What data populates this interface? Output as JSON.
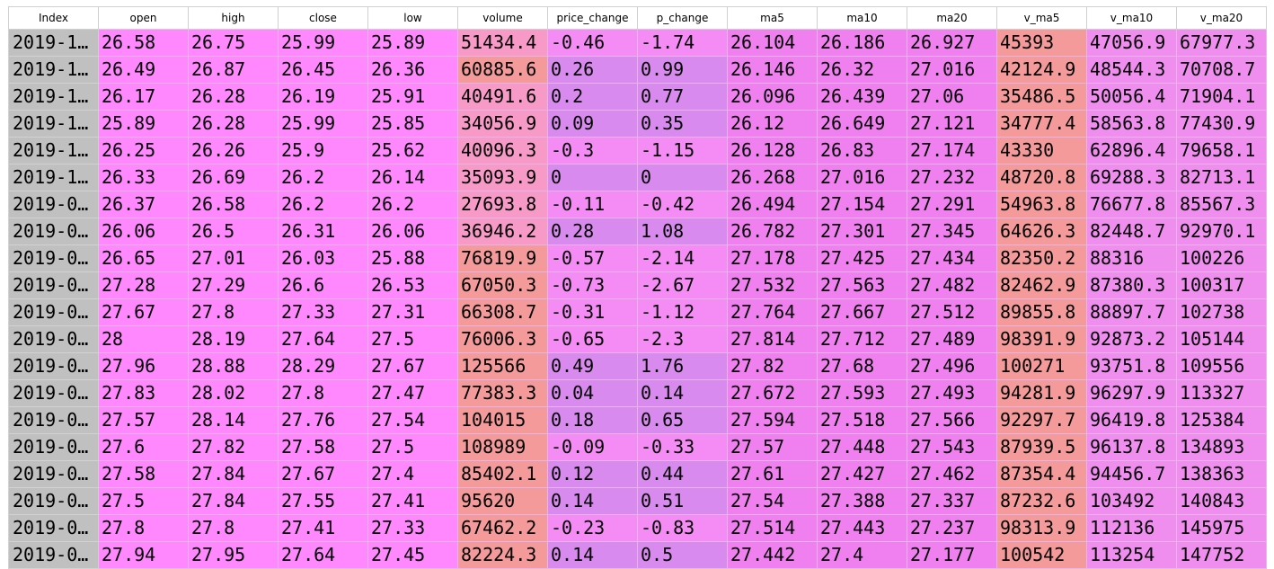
{
  "table": {
    "columns": [
      "Index",
      "open",
      "high",
      "close",
      "low",
      "volume",
      "price_change",
      "p_change",
      "ma5",
      "ma10",
      "ma20",
      "v_ma5",
      "v_ma10",
      "v_ma20"
    ],
    "rows": [
      [
        "2019-1…",
        "26.58",
        "26.75",
        "25.99",
        "25.89",
        "51434.4",
        "-0.46",
        "-1.74",
        "26.104",
        "26.186",
        "26.927",
        "45393",
        "47056.9",
        "67977.3"
      ],
      [
        "2019-1…",
        "26.49",
        "26.87",
        "26.45",
        "26.36",
        "60885.6",
        "0.26",
        "0.99",
        "26.146",
        "26.32",
        "27.016",
        "42124.9",
        "48544.3",
        "70708.7"
      ],
      [
        "2019-1…",
        "26.17",
        "26.28",
        "26.19",
        "25.91",
        "40491.6",
        "0.2",
        "0.77",
        "26.096",
        "26.439",
        "27.06",
        "35486.5",
        "50056.4",
        "71904.1"
      ],
      [
        "2019-1…",
        "25.89",
        "26.28",
        "25.99",
        "25.85",
        "34056.9",
        "0.09",
        "0.35",
        "26.12",
        "26.649",
        "27.121",
        "34777.4",
        "58563.8",
        "77430.9"
      ],
      [
        "2019-1…",
        "26.25",
        "26.26",
        "25.9",
        "25.62",
        "40096.3",
        "-0.3",
        "-1.15",
        "26.128",
        "26.83",
        "27.174",
        "43330",
        "62896.4",
        "79658.1"
      ],
      [
        "2019-1…",
        "26.33",
        "26.69",
        "26.2",
        "26.14",
        "35093.9",
        "0",
        "0",
        "26.268",
        "27.016",
        "27.232",
        "48720.8",
        "69288.3",
        "82713.1"
      ],
      [
        "2019-0…",
        "26.37",
        "26.58",
        "26.2",
        "26.2",
        "27693.8",
        "-0.11",
        "-0.42",
        "26.494",
        "27.154",
        "27.291",
        "54963.8",
        "76677.8",
        "85567.3"
      ],
      [
        "2019-0…",
        "26.06",
        "26.5",
        "26.31",
        "26.06",
        "36946.2",
        "0.28",
        "1.08",
        "26.782",
        "27.301",
        "27.345",
        "64626.3",
        "82448.7",
        "92970.1"
      ],
      [
        "2019-0…",
        "26.65",
        "27.01",
        "26.03",
        "25.88",
        "76819.9",
        "-0.57",
        "-2.14",
        "27.178",
        "27.425",
        "27.434",
        "82350.2",
        "88316",
        "100226"
      ],
      [
        "2019-0…",
        "27.28",
        "27.29",
        "26.6",
        "26.53",
        "67050.3",
        "-0.73",
        "-2.67",
        "27.532",
        "27.563",
        "27.482",
        "82462.9",
        "87380.3",
        "100317"
      ],
      [
        "2019-0…",
        "27.67",
        "27.8",
        "27.33",
        "27.31",
        "66308.7",
        "-0.31",
        "-1.12",
        "27.764",
        "27.667",
        "27.512",
        "89855.8",
        "88897.7",
        "102738"
      ],
      [
        "2019-0…",
        "28",
        "28.19",
        "27.64",
        "27.5",
        "76006.3",
        "-0.65",
        "-2.3",
        "27.814",
        "27.712",
        "27.489",
        "98391.9",
        "92873.2",
        "105144"
      ],
      [
        "2019-0…",
        "27.96",
        "28.88",
        "28.29",
        "27.67",
        "125566",
        "0.49",
        "1.76",
        "27.82",
        "27.68",
        "27.496",
        "100271",
        "93751.8",
        "109556"
      ],
      [
        "2019-0…",
        "27.83",
        "28.02",
        "27.8",
        "27.47",
        "77383.3",
        "0.04",
        "0.14",
        "27.672",
        "27.593",
        "27.493",
        "94281.9",
        "96297.9",
        "113327"
      ],
      [
        "2019-0…",
        "27.57",
        "28.14",
        "27.76",
        "27.54",
        "104015",
        "0.18",
        "0.65",
        "27.594",
        "27.518",
        "27.566",
        "92297.7",
        "96419.8",
        "125384"
      ],
      [
        "2019-0…",
        "27.6",
        "27.82",
        "27.58",
        "27.5",
        "108989",
        "-0.09",
        "-0.33",
        "27.57",
        "27.448",
        "27.543",
        "87939.5",
        "96137.8",
        "134893"
      ],
      [
        "2019-0…",
        "27.58",
        "27.84",
        "27.67",
        "27.4",
        "85402.1",
        "0.12",
        "0.44",
        "27.61",
        "27.427",
        "27.462",
        "87354.4",
        "94456.7",
        "138363"
      ],
      [
        "2019-0…",
        "27.5",
        "27.84",
        "27.55",
        "27.41",
        "95620",
        "0.14",
        "0.51",
        "27.54",
        "27.388",
        "27.337",
        "87232.6",
        "103492",
        "140843"
      ],
      [
        "2019-0…",
        "27.8",
        "27.8",
        "27.41",
        "27.33",
        "67462.2",
        "-0.23",
        "-0.83",
        "27.514",
        "27.443",
        "27.237",
        "98313.9",
        "112136",
        "145975"
      ],
      [
        "2019-0…",
        "27.94",
        "27.95",
        "27.64",
        "27.45",
        "82224.3",
        "0.14",
        "0.5",
        "27.442",
        "27.4",
        "27.177",
        "100542",
        "113254",
        "147752"
      ]
    ]
  },
  "colors": {
    "index_bg": "#c0c0c0",
    "price_cols": "#ff88ff",
    "volume_high": "#f49a9a",
    "change_cols": "#d98aef",
    "ma_cols": "#f080f0",
    "v_ma5": "#f49a9a",
    "v_ma_other": "#f08ef0"
  }
}
